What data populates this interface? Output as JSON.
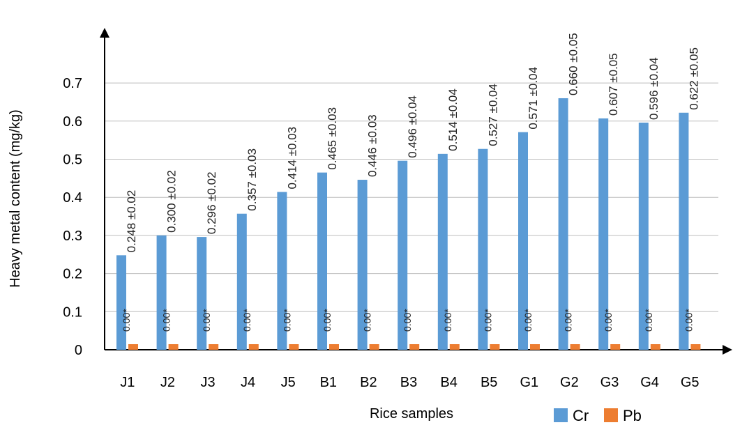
{
  "chart_data": {
    "type": "bar",
    "title": "",
    "xlabel": "Rice samples",
    "ylabel": "Heavy metal content  (mg/kg)",
    "ylim": [
      0,
      0.7
    ],
    "yticks": [
      "0",
      "0.1",
      "0.2",
      "0.3",
      "0.4",
      "0.5",
      "0.6",
      "0.7"
    ],
    "grid": true,
    "legend_position": "bottom-right",
    "categories": [
      "J1",
      "J2",
      "J3",
      "J4",
      "J5",
      "B1",
      "B2",
      "B3",
      "B4",
      "B5",
      "G1",
      "G2",
      "G3",
      "G4",
      "G5"
    ],
    "series": [
      {
        "name": "Cr",
        "color": "#5B9BD5",
        "values": [
          0.248,
          0.3,
          0.296,
          0.357,
          0.414,
          0.465,
          0.446,
          0.496,
          0.514,
          0.527,
          0.571,
          0.66,
          0.607,
          0.596,
          0.622
        ],
        "labels": [
          "0.248 ±0.02",
          "0.300 ±0.02",
          "0.296 ±0.02",
          "0.357 ±0.03",
          "0.414 ±0.03",
          "0.465 ±0.03",
          "0.446 ±0.03",
          "0.496 ±0.04",
          "0.514 ±0.04",
          "0.527 ±0.04",
          "0.571 ±0.04",
          "0.660 ±0.05",
          "0.607 ±0.05",
          "0.596 ±0.04",
          "0.622 ±0.05"
        ]
      },
      {
        "name": "Pb",
        "color": "#ED7D31",
        "values": [
          0.0,
          0.0,
          0.0,
          0.0,
          0.0,
          0.0,
          0.0,
          0.0,
          0.0,
          0.0,
          0.0,
          0.0,
          0.0,
          0.0,
          0.0
        ],
        "labels": [
          "0.00*",
          "0.00*",
          "0.00*",
          "0.00*",
          "0.00*",
          "0.00*",
          "0.00*",
          "0.00*",
          "0.00*",
          "0.00*",
          "0.00*",
          "0.00*",
          "0.00*",
          "0.00*",
          "0.00*"
        ]
      }
    ]
  }
}
